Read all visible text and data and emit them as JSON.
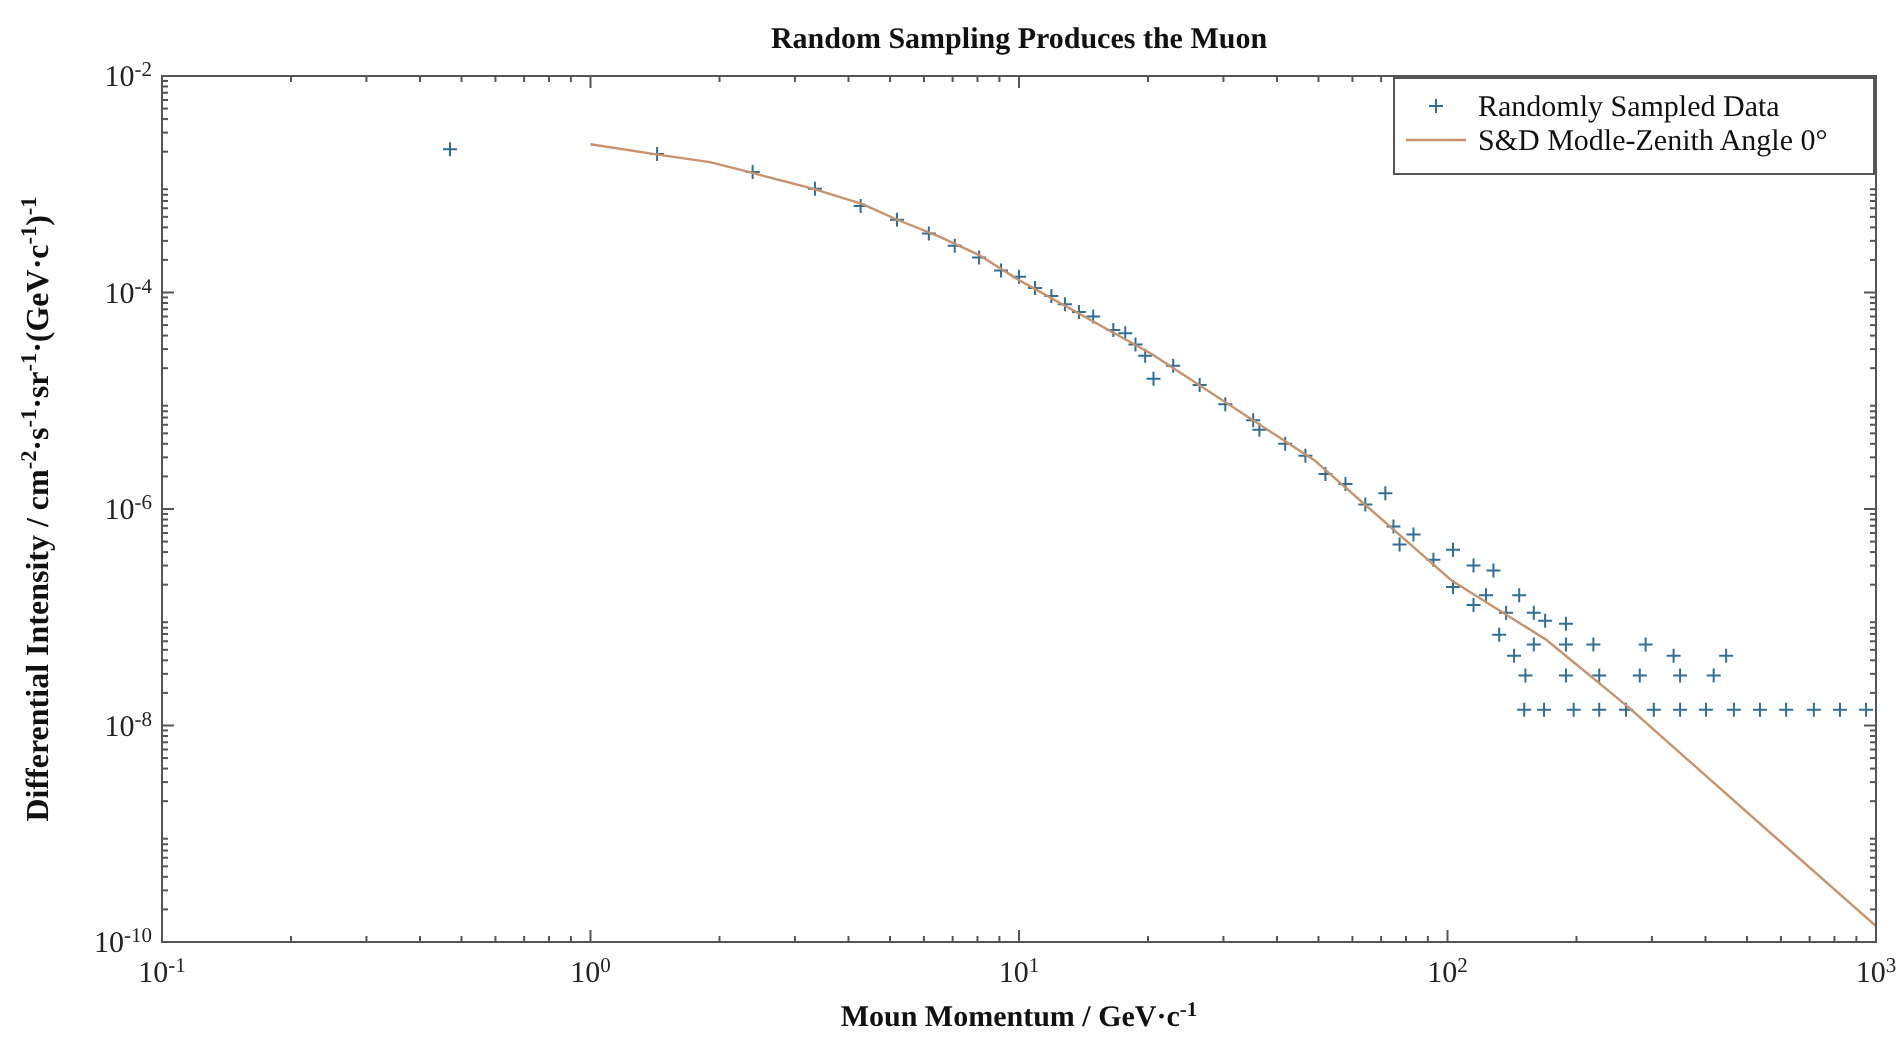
{
  "chart_data": {
    "type": "scatter",
    "title": "Random Sampling Produces the Muon",
    "xlabel": "Moun Momentum / GeV·c$^{-1}$",
    "ylabel": "Differential Intensity / cm$^{-2}$·s$^{-1}$·sr$^{-1}$·(GeV·c$^{-1}$)$^{-1}$",
    "log": "xy",
    "grid": false,
    "legend": "top right",
    "xlim": [
      0.1,
      1000
    ],
    "ylim": [
      1e-10,
      0.01
    ],
    "xticks": [
      {
        "value": 0.1,
        "label": "10$^{-1}$"
      },
      {
        "value": 1,
        "label": "10$^{0}$"
      },
      {
        "value": 10,
        "label": "10$^{1}$"
      },
      {
        "value": 100,
        "label": "10$^{2}$"
      },
      {
        "value": 1000,
        "label": "10$^{3}$"
      }
    ],
    "yticks": [
      {
        "value": 1e-10,
        "label": "10$^{-10}$"
      },
      {
        "value": 1e-08,
        "label": "10$^{-8}$"
      },
      {
        "value": 1e-06,
        "label": "10$^{-6}$"
      },
      {
        "value": 0.0001,
        "label": "10$^{-4}$"
      },
      {
        "value": 0.01,
        "label": "10$^{-2}$"
      }
    ],
    "series": [
      {
        "name": "Randomly Sampled Data",
        "marker": "cross",
        "color": "#2f6f96",
        "x": [
          0.47,
          1.43,
          2.39,
          3.34,
          4.27,
          5.19,
          6.16,
          7.08,
          8.07,
          9.08,
          10,
          10.9,
          11.9,
          12.8,
          13.8,
          14.9,
          16.6,
          17.7,
          18.7,
          19.7,
          20.6,
          22.9,
          26.4,
          30.3,
          35.2,
          36.4,
          41.8,
          46.6,
          51.9,
          57.8,
          64.3,
          71.6,
          74.8,
          77.3,
          83.3,
          92.7,
          103,
          103,
          115,
          123,
          128,
          115,
          137,
          147,
          132,
          159,
          169,
          189,
          143,
          159,
          189,
          219,
          290,
          337,
          447,
          152,
          189,
          226,
          281,
          349,
          418,
          151,
          168,
          197,
          226,
          261,
          303,
          349,
          401,
          466,
          536,
          617,
          716,
          824,
          948
        ],
        "values": [
          0.0021,
          0.0019,
          0.0013,
          0.00091,
          0.00063,
          0.00047,
          0.00035,
          0.00027,
          0.00021,
          0.00016,
          0.00014,
          0.00011,
          9.3e-05,
          7.8e-05,
          6.6e-05,
          6e-05,
          4.5e-05,
          4.2e-05,
          3.3e-05,
          2.6e-05,
          1.6e-05,
          2.1e-05,
          1.4e-05,
          9.3e-06,
          6.6e-06,
          5.4e-06,
          4e-06,
          3.1e-06,
          2.1e-06,
          1.7e-06,
          1.1e-06,
          1.4e-06,
          6.9e-07,
          4.7e-07,
          5.8e-07,
          3.4e-07,
          4.2e-07,
          1.9e-07,
          3e-07,
          1.6e-07,
          2.7e-07,
          1.3e-07,
          1.1e-07,
          1.6e-07,
          6.9e-08,
          1.1e-07,
          9.3e-08,
          8.7e-08,
          4.4e-08,
          5.6e-08,
          5.6e-08,
          5.6e-08,
          5.6e-08,
          4.4e-08,
          4.4e-08,
          2.9e-08,
          2.9e-08,
          2.9e-08,
          2.9e-08,
          2.9e-08,
          2.9e-08,
          1.4e-08,
          1.4e-08,
          1.4e-08,
          1.4e-08,
          1.4e-08,
          1.4e-08,
          1.4e-08,
          1.4e-08,
          1.4e-08,
          1.4e-08,
          1.4e-08,
          1.4e-08,
          1.4e-08,
          1.4e-08
        ]
      },
      {
        "name": "S&D Modle-Zenith Angle 0°",
        "type": "line",
        "line_style": "solid",
        "color": "#c8926a",
        "x": [
          1,
          1.41,
          1.9,
          2.34,
          3.3,
          4.3,
          5.2,
          6.5,
          8.1,
          10,
          20.4,
          49,
          102,
          170,
          263,
          1000
        ],
        "values": [
          0.00234,
          0.0019,
          0.0016,
          0.0013,
          0.00091,
          0.00066,
          0.00047,
          0.00033,
          0.00022,
          0.00013,
          2.7e-05,
          2.8e-06,
          2.2e-07,
          6.2e-08,
          1.5e-08,
          1.4e-10
        ]
      }
    ]
  }
}
